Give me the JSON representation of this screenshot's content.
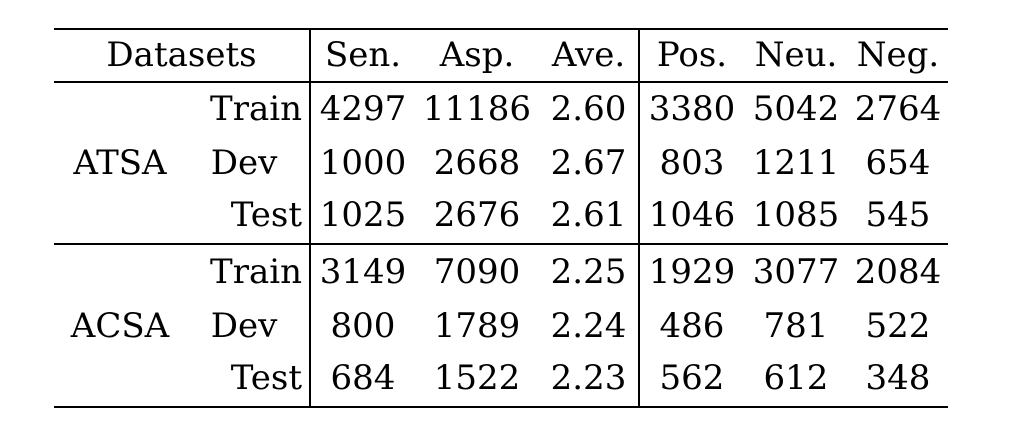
{
  "table": {
    "headers": [
      "Datasets",
      "Sen.",
      "Asp.",
      "Ave.",
      "Pos.",
      "Neu.",
      "Neg."
    ],
    "groups": [
      {
        "name": "ATSA",
        "rows": [
          {
            "split": "Train",
            "values": [
              "4297",
              "11186",
              "2.60",
              "3380",
              "5042",
              "2764"
            ]
          },
          {
            "split": "Dev",
            "values": [
              "1000",
              "2668",
              "2.67",
              "803",
              "1211",
              "654"
            ]
          },
          {
            "split": "Test",
            "values": [
              "1025",
              "2676",
              "2.61",
              "1046",
              "1085",
              "545"
            ]
          }
        ]
      },
      {
        "name": "ACSA",
        "rows": [
          {
            "split": "Train",
            "values": [
              "3149",
              "7090",
              "2.25",
              "1929",
              "3077",
              "2084"
            ]
          },
          {
            "split": "Dev",
            "values": [
              "800",
              "1789",
              "2.24",
              "486",
              "781",
              "522"
            ]
          },
          {
            "split": "Test",
            "values": [
              "684",
              "1522",
              "2.23",
              "562",
              "612",
              "348"
            ]
          }
        ]
      }
    ]
  }
}
